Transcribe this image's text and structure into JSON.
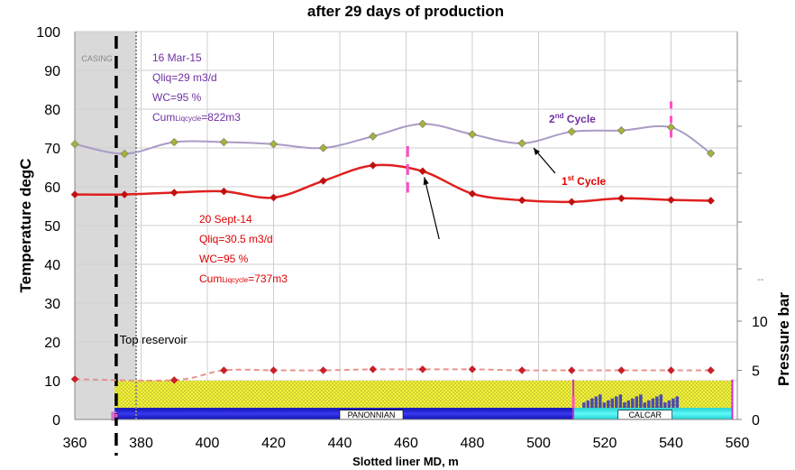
{
  "chart_data": {
    "type": "line",
    "title": "after 29 days of production",
    "xlabel": "Slotted liner MD, m",
    "ylabel": "Temperature degC",
    "y2label": "Pressure bar",
    "xlim": [
      360,
      560
    ],
    "ylim": [
      0,
      100
    ],
    "y2lim": [
      0,
      40
    ],
    "x_ticks": [
      "360",
      "380",
      "400",
      "420",
      "440",
      "460",
      "480",
      "500",
      "520",
      "540",
      "560"
    ],
    "y_ticks": [
      "0",
      "10",
      "20",
      "30",
      "40",
      "50",
      "60",
      "70",
      "80",
      "90",
      "100"
    ],
    "y2_ticks": [
      "0",
      "5",
      "10"
    ],
    "y2_extra_label": "--",
    "grid": true,
    "series": [
      {
        "name": "2nd Cycle",
        "color": "#a99bc6",
        "marker_color": "#a6b23a",
        "x": [
          360,
          375,
          390,
          405,
          420,
          435,
          450,
          465,
          480,
          495,
          510,
          525,
          540,
          552
        ],
        "y": [
          71,
          68.5,
          71.5,
          71.5,
          71,
          70,
          73,
          76.2,
          73.5,
          71.2,
          74.2,
          74.5,
          75.3,
          68.6
        ]
      },
      {
        "name": "1st Cycle",
        "color": "#e02020",
        "marker_color": "#c01010",
        "x": [
          360,
          375,
          390,
          405,
          420,
          435,
          450,
          465,
          480,
          495,
          510,
          525,
          540,
          552
        ],
        "y": [
          58,
          58,
          58.5,
          58.8,
          57.2,
          61.5,
          65.5,
          64,
          58.2,
          56.5,
          56.1,
          57,
          56.6,
          56.4
        ]
      },
      {
        "name": "",
        "axis": "y2",
        "color": "#e8938f",
        "marker_color": "#c8202a",
        "x": [
          360,
          390,
          405,
          420,
          435,
          450,
          465,
          480,
          495,
          510,
          525,
          540,
          552
        ],
        "y": [
          4.1,
          4.0,
          5.0,
          5.0,
          5.0,
          5.1,
          5.1,
          5.1,
          5.0,
          5.0,
          5.0,
          5.0,
          5.0
        ]
      }
    ],
    "annotations": {
      "casing": "CASING",
      "top_reservoir": "Top reservoir",
      "panonnian": "PANONNIAN",
      "calcar": "CALCAR",
      "cycle2_label_main": "2",
      "cycle2_label_sup": "nd",
      "cycle2_label_rest": " Cycle",
      "cycle1_label_main": "1",
      "cycle1_label_sup": "st",
      "cycle1_label_rest": " Cycle",
      "cycle2_box": [
        "16 Mar-15",
        "Qliq=29 m3/d",
        "WC=95 %"
      ],
      "cycle2_cum_a": "Cum",
      "cycle2_cum_b": "Liqcycle",
      "cycle2_cum_c": "=822m3",
      "cycle1_box": [
        "20 Sept-14",
        "Qliq=30.5 m3/d",
        "WC=95 %"
      ],
      "cycle1_cum_a": "Cum",
      "cycle1_cum_b": "Liqcycle",
      "cycle1_cum_c": "=737m3"
    },
    "colors": {
      "cycle2_text": "#7030a0",
      "cycle1_text": "#e00000",
      "casing_fill": "#d9d9d9",
      "marker_pink": "#ff4fc8",
      "reservoir_yellow": "#f2f23a",
      "panonnian_blue": "#2020e0",
      "calcar_cyan": "#22e8e8"
    }
  }
}
